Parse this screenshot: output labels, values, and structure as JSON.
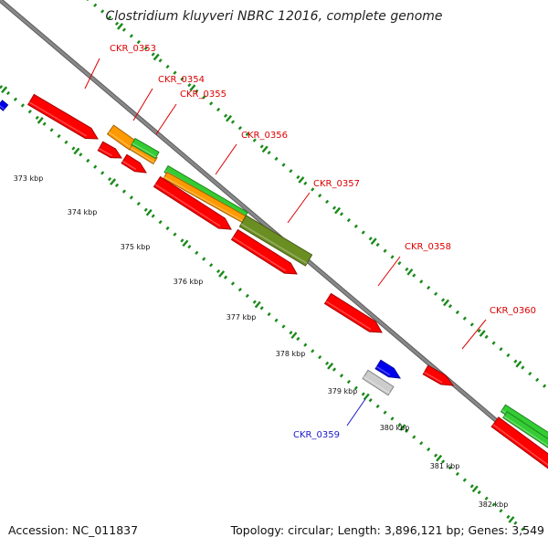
{
  "title": "Clostridium kluyveri NBRC 12016, complete genome",
  "accession": "Accession: NC_011837",
  "summary": "Topology: circular; Length: 3,896,121 bp; Genes: 3,549",
  "colors": {
    "backbone": "#888888",
    "ticks": "#1a8a1a",
    "label_forward": "#dd0000",
    "label_reverse": "#1a1acc",
    "red": "#ff0000",
    "orange": "#ff9900",
    "green": "#33cc33",
    "olive": "#6b8e23",
    "blue": "#0000ee",
    "gray": "#cccccc"
  },
  "kbp_labels": [
    "373 kbp",
    "374 kbp",
    "375 kbp",
    "376 kbp",
    "377 kbp",
    "378 kbp",
    "379 kbp",
    "380 kbp",
    "381 kbp",
    "382 kbp"
  ],
  "gene_labels": [
    "CKR_0353",
    "CKR_0354",
    "CKR_0355",
    "CKR_0356",
    "CKR_0357",
    "CKR_0358",
    "CKR_0359",
    "CKR_0360"
  ]
}
